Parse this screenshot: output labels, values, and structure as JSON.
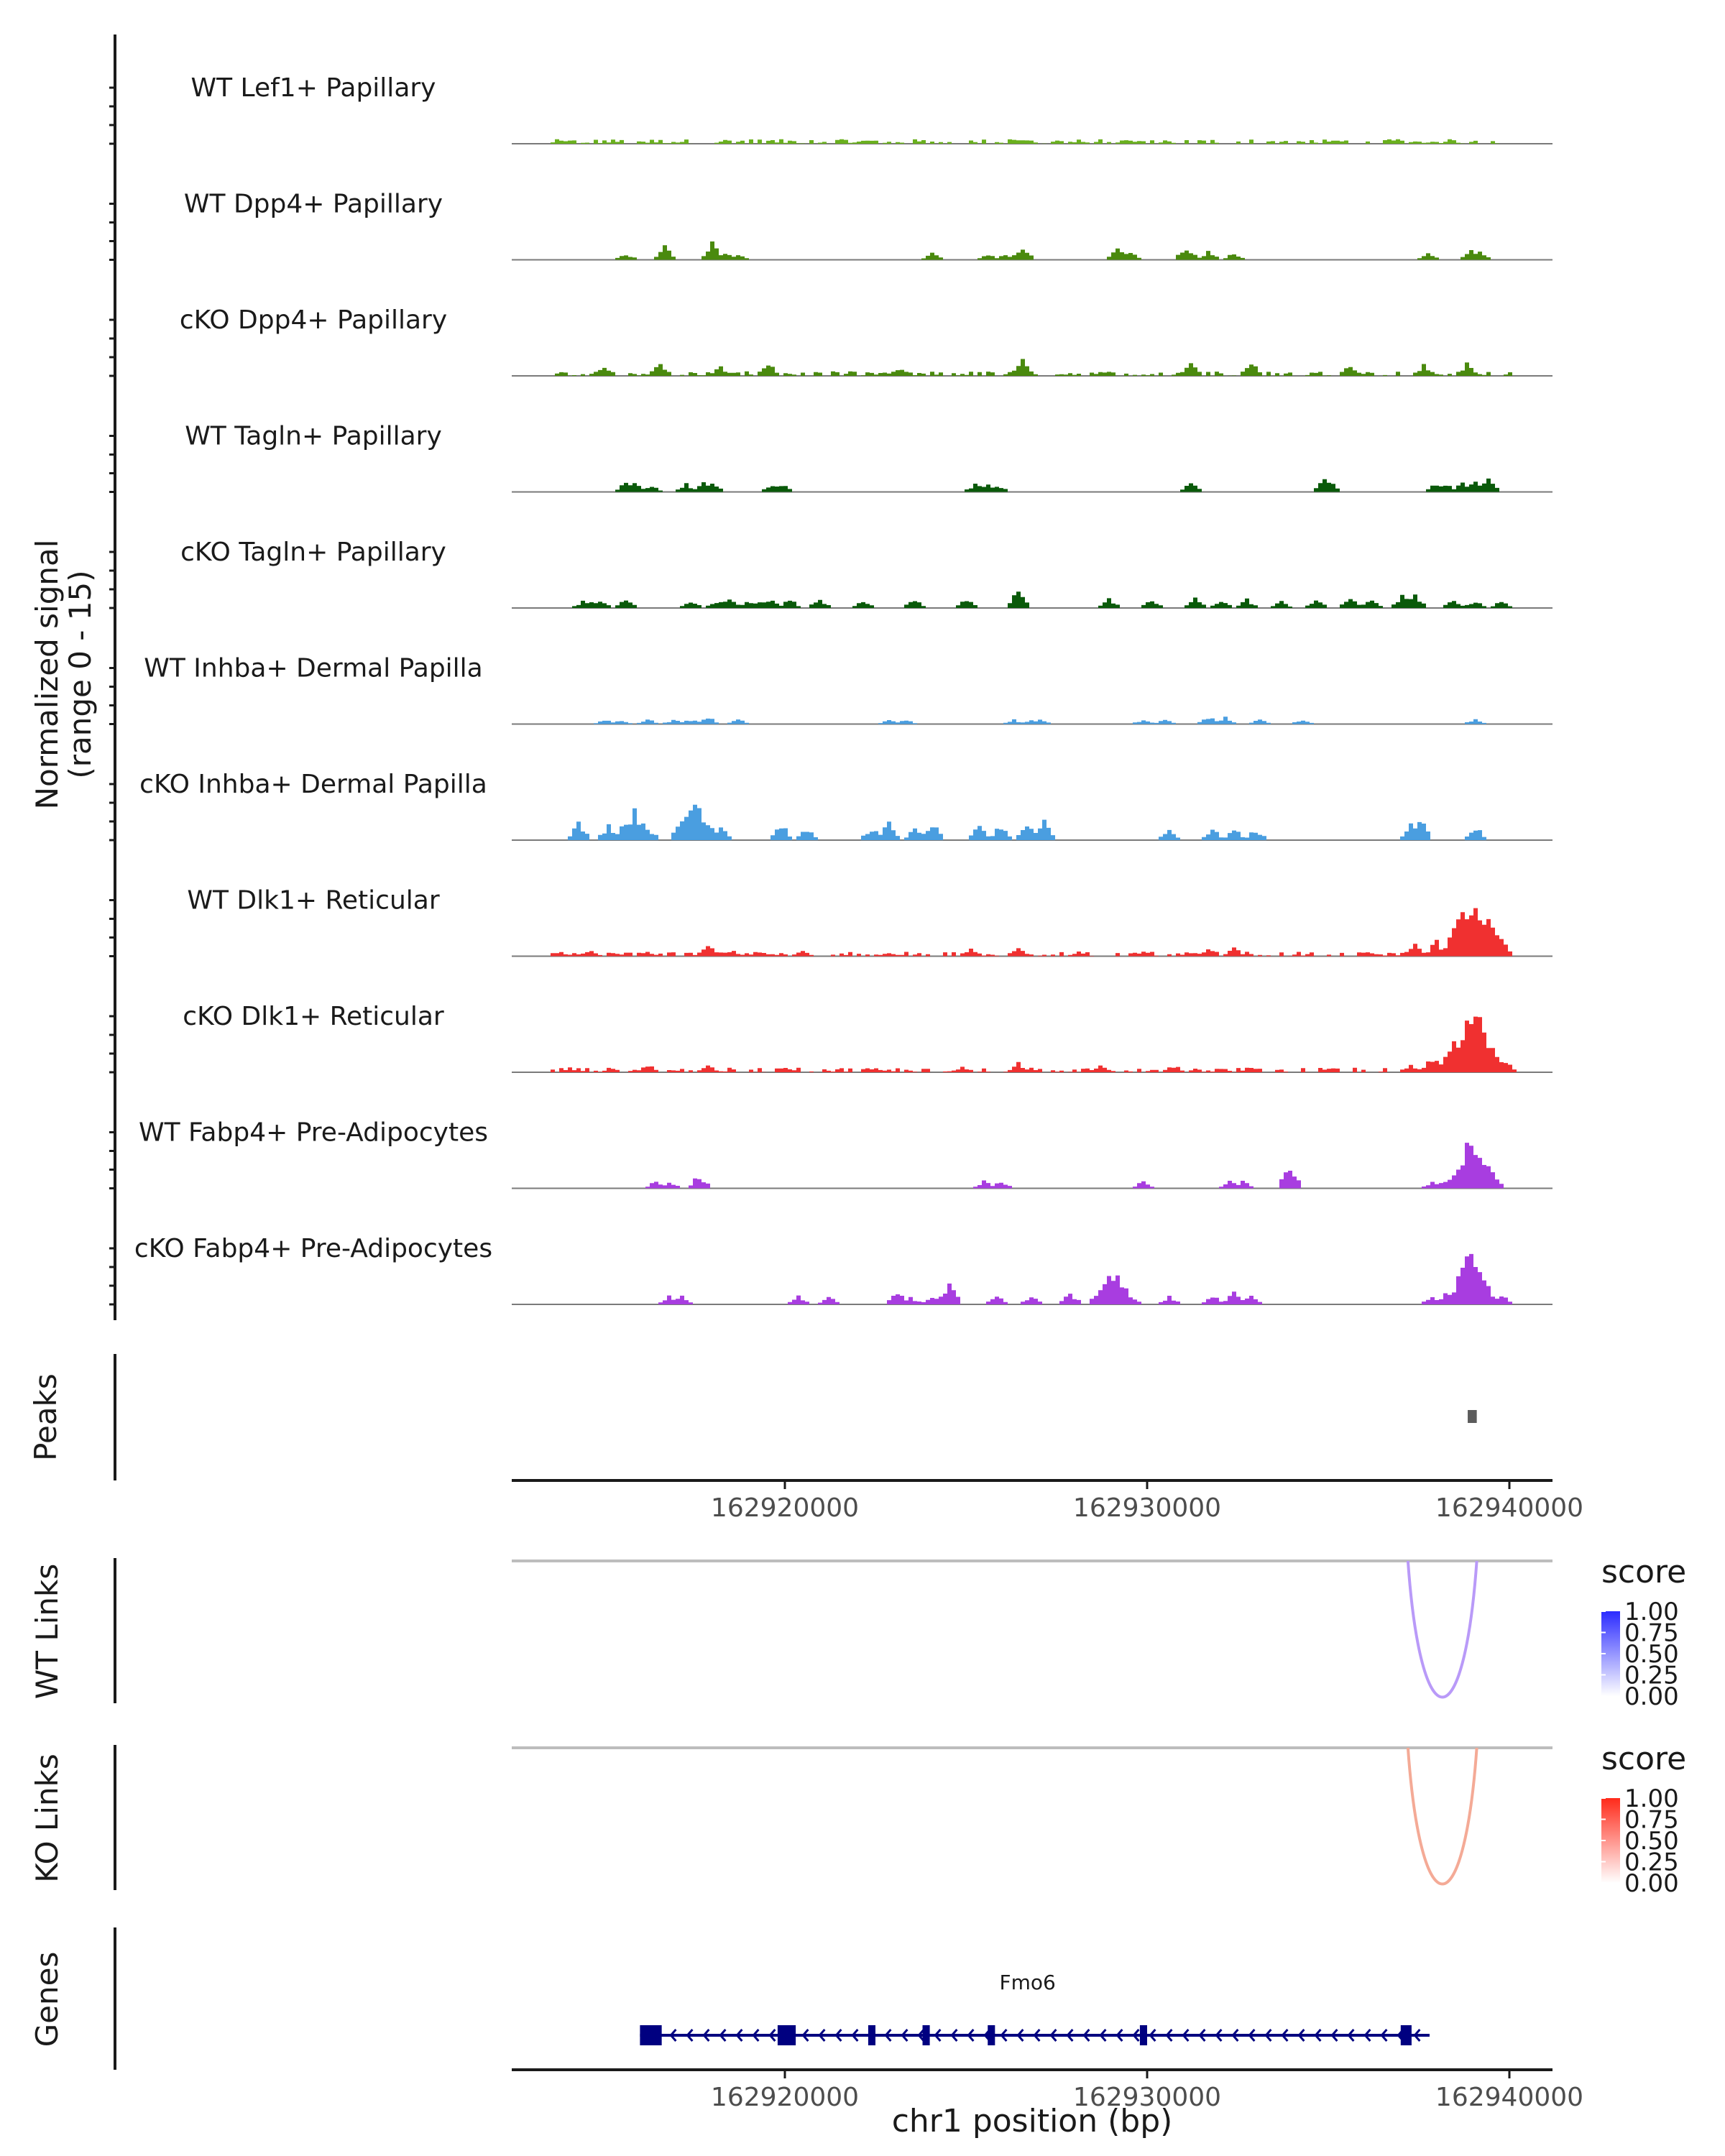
{
  "chart_data": {
    "type": "coverage",
    "chromosome": "chr1",
    "region": [
      162912000,
      162941300
    ],
    "coverage": {
      "ylabel": "Normalized signal",
      "ylabel_range": "(range 0 - 15)",
      "range": [
        0,
        15
      ],
      "tracks": [
        {
          "name": "WT Lef1+ Papillary",
          "color": "#6ab01e",
          "style": "dense",
          "peaks": [
            [
              162913800,
              0.8
            ],
            [
              162926400,
              1.2
            ],
            [
              162922000,
              0.7
            ],
            [
              162929500,
              0.8
            ],
            [
              162937800,
              0.6
            ]
          ]
        },
        {
          "name": "WT Dpp4+ Papillary",
          "color": "#4a8a0e",
          "style": "sparse",
          "peaks": [
            [
              162915600,
              1.5
            ],
            [
              162916600,
              3.0
            ],
            [
              162917900,
              3.8
            ],
            [
              162918300,
              2.0
            ],
            [
              162918600,
              1.2
            ],
            [
              162924000,
              1.5
            ],
            [
              162925500,
              1.4
            ],
            [
              162926000,
              1.2
            ],
            [
              162926500,
              2.8
            ],
            [
              162929100,
              2.3
            ],
            [
              162929500,
              2.0
            ],
            [
              162931000,
              3.2
            ],
            [
              162931600,
              2.0
            ],
            [
              162932300,
              1.5
            ],
            [
              162937700,
              1.5
            ],
            [
              162938900,
              2.0
            ],
            [
              162939100,
              2.0
            ]
          ]
        },
        {
          "name": "cKO Dpp4+ Papillary",
          "color": "#4a8a0e",
          "style": "dense",
          "peaks": [
            [
              162915000,
              2.5
            ],
            [
              162916500,
              2.8
            ],
            [
              162918200,
              2.2
            ],
            [
              162919500,
              2.8
            ],
            [
              162923000,
              2.0
            ],
            [
              162926500,
              3.5
            ],
            [
              162931200,
              4.0
            ],
            [
              162932800,
              3.2
            ],
            [
              162935500,
              2.8
            ],
            [
              162937600,
              2.5
            ],
            [
              162938800,
              2.8
            ]
          ]
        },
        {
          "name": "WT Tagln+ Papillary",
          "color": "#0a5a0a",
          "style": "sparse",
          "peaks": [
            [
              162915500,
              2.0
            ],
            [
              162915800,
              2.0
            ],
            [
              162916300,
              1.5
            ],
            [
              162917200,
              1.8
            ],
            [
              162917700,
              2.0
            ],
            [
              162917900,
              2.0
            ],
            [
              162919600,
              1.8
            ],
            [
              162919800,
              1.8
            ],
            [
              162925200,
              1.8
            ],
            [
              162925500,
              1.8
            ],
            [
              162925800,
              1.8
            ],
            [
              162931100,
              2.2
            ],
            [
              162934800,
              3.0
            ],
            [
              162935000,
              2.5
            ],
            [
              162937900,
              2.2
            ],
            [
              162938200,
              2.2
            ],
            [
              162938600,
              2.0
            ],
            [
              162939000,
              2.4
            ],
            [
              162939400,
              3.0
            ]
          ]
        },
        {
          "name": "cKO Tagln+ Papillary",
          "color": "#0a5a0a",
          "style": "sparse",
          "peaks": [
            [
              162914400,
              1.5
            ],
            [
              162914600,
              1.8
            ],
            [
              162914900,
              1.8
            ],
            [
              162915500,
              2.0
            ],
            [
              162917400,
              1.8
            ],
            [
              162918100,
              1.8
            ],
            [
              162918400,
              2.0
            ],
            [
              162918900,
              1.5
            ],
            [
              162919200,
              1.8
            ],
            [
              162919600,
              2.2
            ],
            [
              162920100,
              2.0
            ],
            [
              162920900,
              2.2
            ],
            [
              162922100,
              2.0
            ],
            [
              162923500,
              2.0
            ],
            [
              162925000,
              2.0
            ],
            [
              162926400,
              5.0
            ],
            [
              162928900,
              2.0
            ],
            [
              162930100,
              1.8
            ],
            [
              162931300,
              2.2
            ],
            [
              162932000,
              2.0
            ],
            [
              162932700,
              2.0
            ],
            [
              162933600,
              1.5
            ],
            [
              162934600,
              2.0
            ],
            [
              162935500,
              2.6
            ],
            [
              162936200,
              2.0
            ],
            [
              162937000,
              2.8
            ],
            [
              162937400,
              2.8
            ],
            [
              162938400,
              2.0
            ],
            [
              162939000,
              1.8
            ],
            [
              162939700,
              1.5
            ]
          ]
        },
        {
          "name": "WT Inhba+ Dermal Papilla",
          "color": "#4a9ee0",
          "style": "sparse",
          "peaks": [
            [
              162915000,
              1.0
            ],
            [
              162915400,
              1.0
            ],
            [
              162916200,
              1.2
            ],
            [
              162916900,
              1.0
            ],
            [
              162917200,
              1.0
            ],
            [
              162917500,
              1.0
            ],
            [
              162917800,
              1.6
            ],
            [
              162918700,
              1.2
            ],
            [
              162922800,
              1.0
            ],
            [
              162923300,
              1.0
            ],
            [
              162926300,
              1.0
            ],
            [
              162926700,
              1.0
            ],
            [
              162927000,
              1.0
            ],
            [
              162929800,
              1.0
            ],
            [
              162930400,
              1.0
            ],
            [
              162931600,
              1.8
            ],
            [
              162932100,
              1.6
            ],
            [
              162933000,
              1.0
            ],
            [
              162934300,
              1.2
            ],
            [
              162939000,
              1.2
            ]
          ]
        },
        {
          "name": "cKO Inhba+ Dermal Papilla",
          "color": "#4a9ee0",
          "style": "sparse",
          "peaks": [
            [
              162914300,
              4.0
            ],
            [
              162915100,
              3.5
            ],
            [
              162915800,
              6.5
            ],
            [
              162917500,
              9.5
            ],
            [
              162918200,
              3.5
            ],
            [
              162919900,
              3.8
            ],
            [
              162920600,
              2.5
            ],
            [
              162922300,
              3.0
            ],
            [
              162922800,
              4.0
            ],
            [
              162923500,
              2.5
            ],
            [
              162924000,
              3.8
            ],
            [
              162925300,
              3.2
            ],
            [
              162925900,
              3.5
            ],
            [
              162926600,
              4.0
            ],
            [
              162927100,
              5.0
            ],
            [
              162930600,
              2.5
            ],
            [
              162931800,
              2.5
            ],
            [
              162932300,
              2.5
            ],
            [
              162932900,
              2.5
            ],
            [
              162937200,
              3.5
            ],
            [
              162937500,
              6.0
            ],
            [
              162939000,
              3.0
            ]
          ]
        },
        {
          "name": "WT Dlk1+ Reticular",
          "color": "#f03030",
          "style": "dense",
          "peaks": [
            [
              162913800,
              1.0
            ],
            [
              162914600,
              1.2
            ],
            [
              162916100,
              1.2
            ],
            [
              162917800,
              2.5
            ],
            [
              162918500,
              1.2
            ],
            [
              162920400,
              1.2
            ],
            [
              162922800,
              1.0
            ],
            [
              162925100,
              1.8
            ],
            [
              162926400,
              2.0
            ],
            [
              162928100,
              1.2
            ],
            [
              162929800,
              1.0
            ],
            [
              162931600,
              2.0
            ],
            [
              162932400,
              1.8
            ],
            [
              162936000,
              1.2
            ],
            [
              162937300,
              2.5
            ],
            [
              162937900,
              3.5
            ],
            [
              162938400,
              6.0
            ],
            [
              162938800,
              11.5
            ],
            [
              162939100,
              12.5
            ],
            [
              162939400,
              7.5
            ]
          ]
        },
        {
          "name": "cKO Dlk1+ Reticular",
          "color": "#f03030",
          "style": "dense",
          "peaks": [
            [
              162914000,
              1.0
            ],
            [
              162916200,
              1.8
            ],
            [
              162917800,
              1.6
            ],
            [
              162920000,
              1.2
            ],
            [
              162922500,
              1.0
            ],
            [
              162924800,
              1.5
            ],
            [
              162926400,
              2.2
            ],
            [
              162928600,
              1.5
            ],
            [
              162930700,
              1.6
            ],
            [
              162932800,
              1.5
            ],
            [
              162935000,
              1.2
            ],
            [
              162937200,
              1.8
            ],
            [
              162937800,
              3.5
            ],
            [
              162938300,
              5.5
            ],
            [
              162938800,
              12.5
            ],
            [
              162939000,
              13.5
            ],
            [
              162939300,
              7.5
            ],
            [
              162939800,
              2.5
            ]
          ]
        },
        {
          "name": "WT Fabp4+ Pre-Adipocytes",
          "color": "#a83de0",
          "style": "sparse",
          "peaks": [
            [
              162916400,
              1.6
            ],
            [
              162916800,
              1.6
            ],
            [
              162917600,
              3.0
            ],
            [
              162925400,
              1.6
            ],
            [
              162925900,
              1.6
            ],
            [
              162929900,
              1.6
            ],
            [
              162932200,
              1.6
            ],
            [
              162932600,
              1.6
            ],
            [
              162933900,
              6.0
            ],
            [
              162937800,
              1.4
            ],
            [
              162938200,
              1.8
            ],
            [
              162938600,
              3.0
            ],
            [
              162938900,
              11.0
            ],
            [
              162939100,
              7.0
            ]
          ]
        },
        {
          "name": "cKO Fabp4+ Pre-Adipocytes",
          "color": "#a83de0",
          "style": "sparse",
          "peaks": [
            [
              162916700,
              1.8
            ],
            [
              162917100,
              1.8
            ],
            [
              162920300,
              1.8
            ],
            [
              162921200,
              1.8
            ],
            [
              162923100,
              2.6
            ],
            [
              162923400,
              1.8
            ],
            [
              162924000,
              2.0
            ],
            [
              162924500,
              4.6
            ],
            [
              162925800,
              1.8
            ],
            [
              162926700,
              1.8
            ],
            [
              162927800,
              2.8
            ],
            [
              162929000,
              7.0
            ],
            [
              162929500,
              2.0
            ],
            [
              162930600,
              1.8
            ],
            [
              162931800,
              2.0
            ],
            [
              162932400,
              2.8
            ],
            [
              162932800,
              2.5
            ],
            [
              162937800,
              2.0
            ],
            [
              162938200,
              2.6
            ],
            [
              162938600,
              6.0
            ],
            [
              162938900,
              12.0
            ],
            [
              162939200,
              6.0
            ],
            [
              162939700,
              2.2
            ]
          ]
        }
      ]
    },
    "peaks_track": {
      "label": "Peaks",
      "regions": [
        [
          162938850,
          162939100
        ]
      ],
      "color": "#5c5c5c"
    },
    "axis_ticks": [
      162920000,
      162930000,
      162940000
    ],
    "axis_tick_labels": [
      "162920000",
      "162930000",
      "162940000"
    ],
    "links": [
      {
        "label": "WT Links",
        "legend_title": "score",
        "legend_labels": [
          "1.00",
          "0.75",
          "0.50",
          "0.25",
          "0.00"
        ],
        "color_high": "#2b2bff",
        "arc": {
          "start": 162937200,
          "end": 162939100,
          "score": 0.45,
          "color": "#b99af8"
        }
      },
      {
        "label": "KO Links",
        "legend_title": "score",
        "legend_labels": [
          "1.00",
          "0.75",
          "0.50",
          "0.25",
          "0.00"
        ],
        "color_high": "#ff2a1a",
        "arc": {
          "start": 162937200,
          "end": 162939100,
          "score": 0.45,
          "color": "#f4aa96"
        }
      }
    ],
    "genes": {
      "label": "Genes",
      "gene_name": "Fmo6",
      "start": 162916000,
      "end": 162937400,
      "strand": "-",
      "exons": [
        [
          162916000,
          162916600
        ],
        [
          162919800,
          162920300
        ],
        [
          162922300,
          162922500
        ],
        [
          162923800,
          162924000
        ],
        [
          162925600,
          162925800
        ],
        [
          162929800,
          162930000
        ],
        [
          162937000,
          162937300
        ]
      ],
      "color": "#000080"
    },
    "xlabel": "chr1 position (bp)"
  }
}
